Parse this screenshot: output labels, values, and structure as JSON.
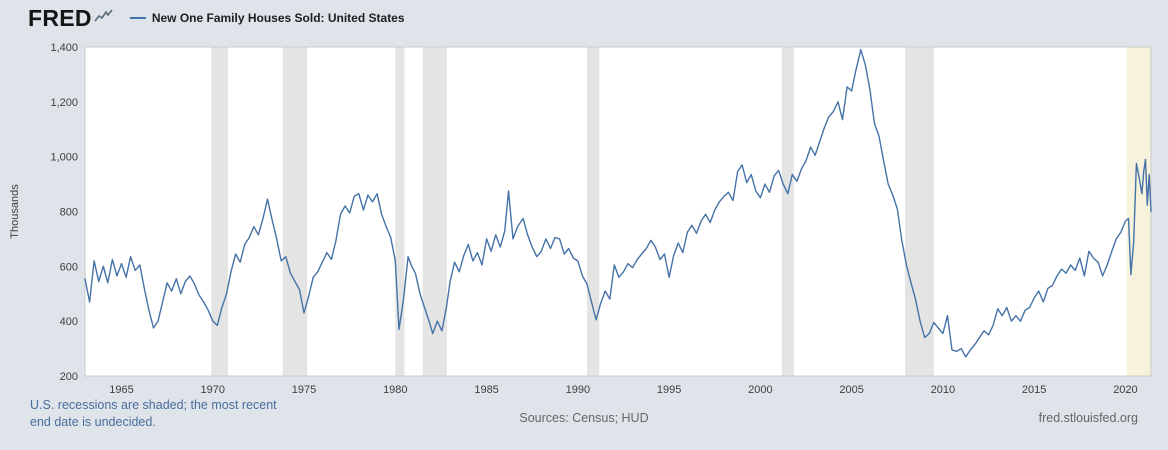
{
  "header": {
    "logo_text": "FRED",
    "legend": {
      "series_label": "New One Family Houses Sold: United States"
    }
  },
  "footer": {
    "note_line1": "U.S. recessions are shaded; the most recent",
    "note_line2": "end date is undecided.",
    "sources": "Sources: Census; HUD",
    "site": "fred.stlouisfed.org"
  },
  "colors": {
    "page_background": "#dee4ea",
    "plot_background": "#ffffff",
    "plot_border": "#cccccc",
    "recession_band": "#e4e4e4",
    "latest_recession_band": "#f6f2dc",
    "series_line": "#4572a7",
    "note_text": "#4a6d9c",
    "muted_text": "#666666",
    "tick_text": "#404040"
  },
  "chart_data": {
    "type": "line",
    "title": "New One Family Houses Sold: United States",
    "xlabel": "",
    "ylabel": "Thousands",
    "units": "Thousands",
    "xlim": [
      1963,
      2021.4
    ],
    "ylim": [
      200,
      1400
    ],
    "grid": false,
    "legend_position": "top-left-header",
    "line_color": "#4572a7",
    "yticks": [
      200,
      400,
      600,
      800,
      1000,
      1200,
      1400
    ],
    "ytick_labels": [
      "200",
      "400",
      "600",
      "800",
      "1,000",
      "1,200",
      "1,400"
    ],
    "xticks": [
      1965,
      1970,
      1975,
      1980,
      1985,
      1990,
      1995,
      2000,
      2005,
      2010,
      2015,
      2020
    ],
    "recession_bands": [
      [
        1969.92,
        1970.83
      ],
      [
        1973.83,
        1975.17
      ],
      [
        1980.0,
        1980.5
      ],
      [
        1981.5,
        1982.83
      ],
      [
        1990.5,
        1991.17
      ],
      [
        2001.17,
        2001.83
      ],
      [
        2007.92,
        2009.5
      ]
    ],
    "latest_recession_band": [
      2020.08,
      2021.4
    ],
    "series": [
      {
        "name": "New One Family Houses Sold: United States",
        "points": [
          [
            1963.0,
            555
          ],
          [
            1963.25,
            470
          ],
          [
            1963.5,
            620
          ],
          [
            1963.75,
            545
          ],
          [
            1964.0,
            600
          ],
          [
            1964.25,
            540
          ],
          [
            1964.5,
            625
          ],
          [
            1964.75,
            565
          ],
          [
            1965.0,
            610
          ],
          [
            1965.25,
            560
          ],
          [
            1965.5,
            635
          ],
          [
            1965.75,
            585
          ],
          [
            1966.0,
            605
          ],
          [
            1966.25,
            520
          ],
          [
            1966.5,
            440
          ],
          [
            1966.75,
            375
          ],
          [
            1967.0,
            400
          ],
          [
            1967.25,
            470
          ],
          [
            1967.5,
            540
          ],
          [
            1967.75,
            510
          ],
          [
            1968.0,
            555
          ],
          [
            1968.25,
            500
          ],
          [
            1968.5,
            545
          ],
          [
            1968.75,
            565
          ],
          [
            1969.0,
            535
          ],
          [
            1969.25,
            495
          ],
          [
            1969.5,
            470
          ],
          [
            1969.75,
            440
          ],
          [
            1970.0,
            400
          ],
          [
            1970.25,
            385
          ],
          [
            1970.5,
            450
          ],
          [
            1970.75,
            500
          ],
          [
            1971.0,
            580
          ],
          [
            1971.25,
            645
          ],
          [
            1971.5,
            615
          ],
          [
            1971.75,
            680
          ],
          [
            1972.0,
            705
          ],
          [
            1972.25,
            745
          ],
          [
            1972.5,
            715
          ],
          [
            1972.75,
            775
          ],
          [
            1973.0,
            845
          ],
          [
            1973.25,
            770
          ],
          [
            1973.5,
            700
          ],
          [
            1973.75,
            620
          ],
          [
            1974.0,
            635
          ],
          [
            1974.25,
            575
          ],
          [
            1974.5,
            545
          ],
          [
            1974.75,
            515
          ],
          [
            1975.0,
            430
          ],
          [
            1975.25,
            490
          ],
          [
            1975.5,
            560
          ],
          [
            1975.75,
            580
          ],
          [
            1976.0,
            615
          ],
          [
            1976.25,
            650
          ],
          [
            1976.5,
            625
          ],
          [
            1976.75,
            695
          ],
          [
            1977.0,
            790
          ],
          [
            1977.25,
            820
          ],
          [
            1977.5,
            795
          ],
          [
            1977.75,
            855
          ],
          [
            1978.0,
            865
          ],
          [
            1978.25,
            805
          ],
          [
            1978.5,
            860
          ],
          [
            1978.75,
            835
          ],
          [
            1979.0,
            865
          ],
          [
            1979.25,
            790
          ],
          [
            1979.5,
            745
          ],
          [
            1979.75,
            705
          ],
          [
            1980.0,
            620
          ],
          [
            1980.2,
            370
          ],
          [
            1980.45,
            480
          ],
          [
            1980.7,
            635
          ],
          [
            1980.9,
            600
          ],
          [
            1981.1,
            575
          ],
          [
            1981.35,
            500
          ],
          [
            1981.6,
            450
          ],
          [
            1981.85,
            400
          ],
          [
            1982.05,
            355
          ],
          [
            1982.3,
            400
          ],
          [
            1982.55,
            365
          ],
          [
            1982.8,
            450
          ],
          [
            1983.0,
            545
          ],
          [
            1983.25,
            615
          ],
          [
            1983.5,
            580
          ],
          [
            1983.75,
            640
          ],
          [
            1984.0,
            680
          ],
          [
            1984.25,
            620
          ],
          [
            1984.5,
            650
          ],
          [
            1984.75,
            605
          ],
          [
            1985.0,
            700
          ],
          [
            1985.25,
            655
          ],
          [
            1985.5,
            715
          ],
          [
            1985.75,
            670
          ],
          [
            1986.0,
            730
          ],
          [
            1986.2,
            875
          ],
          [
            1986.45,
            700
          ],
          [
            1986.7,
            745
          ],
          [
            1987.0,
            775
          ],
          [
            1987.25,
            715
          ],
          [
            1987.5,
            670
          ],
          [
            1987.75,
            635
          ],
          [
            1988.0,
            655
          ],
          [
            1988.25,
            700
          ],
          [
            1988.5,
            665
          ],
          [
            1988.75,
            705
          ],
          [
            1989.0,
            700
          ],
          [
            1989.25,
            645
          ],
          [
            1989.5,
            665
          ],
          [
            1989.75,
            630
          ],
          [
            1990.0,
            620
          ],
          [
            1990.25,
            565
          ],
          [
            1990.5,
            535
          ],
          [
            1990.75,
            470
          ],
          [
            1991.0,
            405
          ],
          [
            1991.25,
            465
          ],
          [
            1991.5,
            510
          ],
          [
            1991.75,
            480
          ],
          [
            1992.0,
            605
          ],
          [
            1992.25,
            560
          ],
          [
            1992.5,
            580
          ],
          [
            1992.75,
            610
          ],
          [
            1993.0,
            595
          ],
          [
            1993.25,
            625
          ],
          [
            1993.5,
            645
          ],
          [
            1993.75,
            665
          ],
          [
            1994.0,
            695
          ],
          [
            1994.25,
            670
          ],
          [
            1994.5,
            625
          ],
          [
            1994.75,
            645
          ],
          [
            1995.0,
            560
          ],
          [
            1995.25,
            640
          ],
          [
            1995.5,
            685
          ],
          [
            1995.75,
            650
          ],
          [
            1996.0,
            725
          ],
          [
            1996.25,
            750
          ],
          [
            1996.5,
            720
          ],
          [
            1996.75,
            765
          ],
          [
            1997.0,
            790
          ],
          [
            1997.25,
            760
          ],
          [
            1997.5,
            805
          ],
          [
            1997.75,
            835
          ],
          [
            1998.0,
            855
          ],
          [
            1998.25,
            870
          ],
          [
            1998.5,
            840
          ],
          [
            1998.75,
            945
          ],
          [
            1999.0,
            970
          ],
          [
            1999.25,
            905
          ],
          [
            1999.5,
            935
          ],
          [
            1999.75,
            875
          ],
          [
            2000.0,
            850
          ],
          [
            2000.25,
            900
          ],
          [
            2000.5,
            870
          ],
          [
            2000.75,
            930
          ],
          [
            2001.0,
            950
          ],
          [
            2001.25,
            900
          ],
          [
            2001.5,
            865
          ],
          [
            2001.75,
            935
          ],
          [
            2002.0,
            910
          ],
          [
            2002.25,
            955
          ],
          [
            2002.5,
            985
          ],
          [
            2002.75,
            1035
          ],
          [
            2003.0,
            1005
          ],
          [
            2003.25,
            1055
          ],
          [
            2003.5,
            1105
          ],
          [
            2003.75,
            1145
          ],
          [
            2004.0,
            1165
          ],
          [
            2004.25,
            1200
          ],
          [
            2004.5,
            1135
          ],
          [
            2004.75,
            1255
          ],
          [
            2005.0,
            1240
          ],
          [
            2005.25,
            1320
          ],
          [
            2005.5,
            1390
          ],
          [
            2005.75,
            1335
          ],
          [
            2006.0,
            1245
          ],
          [
            2006.25,
            1120
          ],
          [
            2006.5,
            1075
          ],
          [
            2006.75,
            985
          ],
          [
            2007.0,
            900
          ],
          [
            2007.25,
            860
          ],
          [
            2007.5,
            810
          ],
          [
            2007.75,
            695
          ],
          [
            2008.0,
            605
          ],
          [
            2008.25,
            540
          ],
          [
            2008.5,
            480
          ],
          [
            2008.75,
            400
          ],
          [
            2009.0,
            340
          ],
          [
            2009.25,
            355
          ],
          [
            2009.5,
            395
          ],
          [
            2009.75,
            375
          ],
          [
            2010.0,
            355
          ],
          [
            2010.25,
            420
          ],
          [
            2010.5,
            295
          ],
          [
            2010.75,
            290
          ],
          [
            2011.0,
            300
          ],
          [
            2011.25,
            270
          ],
          [
            2011.5,
            295
          ],
          [
            2011.75,
            315
          ],
          [
            2012.0,
            340
          ],
          [
            2012.25,
            365
          ],
          [
            2012.5,
            350
          ],
          [
            2012.75,
            385
          ],
          [
            2013.0,
            445
          ],
          [
            2013.25,
            420
          ],
          [
            2013.5,
            450
          ],
          [
            2013.75,
            400
          ],
          [
            2014.0,
            420
          ],
          [
            2014.25,
            400
          ],
          [
            2014.5,
            440
          ],
          [
            2014.75,
            450
          ],
          [
            2015.0,
            485
          ],
          [
            2015.25,
            510
          ],
          [
            2015.5,
            470
          ],
          [
            2015.75,
            520
          ],
          [
            2016.0,
            530
          ],
          [
            2016.25,
            565
          ],
          [
            2016.5,
            590
          ],
          [
            2016.75,
            575
          ],
          [
            2017.0,
            605
          ],
          [
            2017.25,
            585
          ],
          [
            2017.5,
            630
          ],
          [
            2017.75,
            565
          ],
          [
            2018.0,
            655
          ],
          [
            2018.25,
            630
          ],
          [
            2018.5,
            615
          ],
          [
            2018.75,
            565
          ],
          [
            2019.0,
            605
          ],
          [
            2019.25,
            655
          ],
          [
            2019.5,
            700
          ],
          [
            2019.75,
            725
          ],
          [
            2020.0,
            765
          ],
          [
            2020.17,
            775
          ],
          [
            2020.3,
            570
          ],
          [
            2020.45,
            690
          ],
          [
            2020.6,
            975
          ],
          [
            2020.75,
            925
          ],
          [
            2020.9,
            865
          ],
          [
            2021.0,
            945
          ],
          [
            2021.1,
            990
          ],
          [
            2021.2,
            823
          ],
          [
            2021.3,
            935
          ],
          [
            2021.4,
            800
          ]
        ]
      }
    ]
  }
}
